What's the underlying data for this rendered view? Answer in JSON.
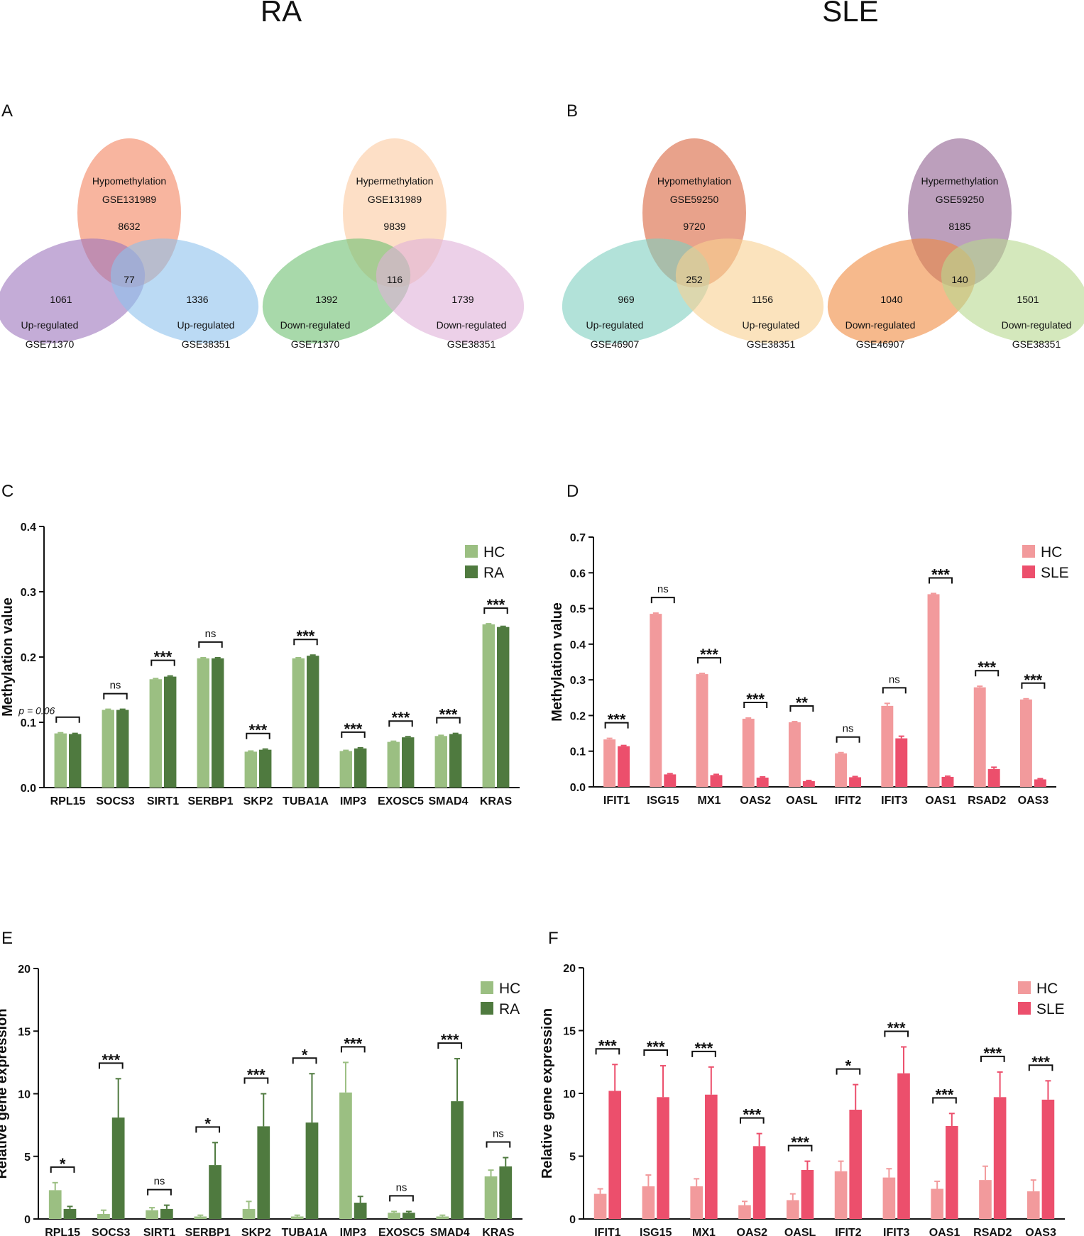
{
  "headers": {
    "left": "RA",
    "right": "SLE"
  },
  "colors": {
    "ra_hc": "#9bbf82",
    "ra": "#4f7a3f",
    "sle_hc": "#f29a9c",
    "sle": "#ec4f6c",
    "text": "#111111"
  },
  "venns": [
    {
      "panel": "A",
      "diagrams": [
        {
          "circles": [
            {
              "labels": [
                "Hypomethylation",
                "GSE131989"
              ],
              "count": "8632",
              "color": "#f3835f"
            },
            {
              "labels": [
                "Up-regulated",
                "GSE71370"
              ],
              "count": "1061",
              "color": "#9c74bc"
            },
            {
              "labels": [
                "Up-regulated",
                "GSE38351"
              ],
              "count": "1336",
              "color": "#8dc2ec"
            }
          ],
          "center": "77"
        },
        {
          "circles": [
            {
              "labels": [
                "Hypermethylation",
                "GSE131989"
              ],
              "count": "9839",
              "color": "#fbc9a0"
            },
            {
              "labels": [
                "Down-regulated",
                "GSE71370"
              ],
              "count": "1392",
              "color": "#6ebf72"
            },
            {
              "labels": [
                "Down-regulated",
                "GSE38351"
              ],
              "count": "1739",
              "color": "#e0b1d9"
            }
          ],
          "center": "116"
        }
      ]
    },
    {
      "panel": "B",
      "diagrams": [
        {
          "circles": [
            {
              "labels": [
                "Hypomethylation",
                "GSE59250"
              ],
              "count": "9720",
              "color": "#d8643e"
            },
            {
              "labels": [
                "Up-regulated",
                "GSE46907"
              ],
              "count": "969",
              "color": "#7fcfc0"
            },
            {
              "labels": [
                "Up-regulated",
                "GSE38351"
              ],
              "count": "1156",
              "color": "#f9d191"
            }
          ],
          "center": "252"
        },
        {
          "circles": [
            {
              "labels": [
                "Hypermethylation",
                "GSE59250"
              ],
              "count": "8185",
              "color": "#8f5f8f"
            },
            {
              "labels": [
                "Down-regulated",
                "GSE46907"
              ],
              "count": "1040",
              "color": "#f08a40"
            },
            {
              "labels": [
                "Down-regulated",
                "GSE38351"
              ],
              "count": "1501",
              "color": "#b7d890"
            }
          ],
          "center": "140"
        }
      ]
    }
  ],
  "chart_data": [
    {
      "panel": "C",
      "type": "bar",
      "ylabel": "Methylation value",
      "ylim": [
        0,
        0.4
      ],
      "yticks": [
        "0.0",
        "0.1",
        "0.2",
        "0.3",
        "0.4"
      ],
      "categories": [
        "RPL15",
        "SOCS3",
        "SIRT1",
        "SERBP1",
        "SKP2",
        "TUBA1A",
        "IMP3",
        "EXOSC5",
        "SMAD4",
        "KRAS"
      ],
      "series": [
        {
          "name": "HC",
          "values": [
            0.083,
            0.119,
            0.166,
            0.198,
            0.055,
            0.198,
            0.056,
            0.07,
            0.079,
            0.25
          ],
          "errors": [
            0.001,
            0.001,
            0.001,
            0.001,
            0.001,
            0.001,
            0.001,
            0.001,
            0.001,
            0.001
          ]
        },
        {
          "name": "RA",
          "values": [
            0.082,
            0.119,
            0.17,
            0.198,
            0.058,
            0.202,
            0.06,
            0.077,
            0.082,
            0.246
          ],
          "errors": [
            0.001,
            0.001,
            0.001,
            0.001,
            0.001,
            0.001,
            0.001,
            0.001,
            0.001,
            0.001
          ]
        }
      ],
      "significance": [
        "p = 0.06",
        "ns",
        "***",
        "ns",
        "***",
        "***",
        "***",
        "***",
        "***",
        "***"
      ],
      "legend": "top-right"
    },
    {
      "panel": "D",
      "type": "bar",
      "ylabel": "Methylation value",
      "ylim": [
        0,
        0.7
      ],
      "yticks": [
        "0.0",
        "0.1",
        "0.2",
        "0.3",
        "0.4",
        "0.5",
        "0.6",
        "0.7"
      ],
      "categories": [
        "IFIT1",
        "ISG15",
        "MX1",
        "OAS2",
        "OASL",
        "IFIT2",
        "IFIT3",
        "OAS1",
        "RSAD2",
        "OAS3"
      ],
      "series": [
        {
          "name": "HC",
          "values": [
            0.133,
            0.485,
            0.316,
            0.191,
            0.181,
            0.094,
            0.227,
            0.54,
            0.279,
            0.245
          ],
          "errors": [
            0.003,
            0.002,
            0.002,
            0.002,
            0.002,
            0.002,
            0.007,
            0.002,
            0.003,
            0.002
          ]
        },
        {
          "name": "SLE",
          "values": [
            0.114,
            0.035,
            0.033,
            0.026,
            0.016,
            0.027,
            0.136,
            0.028,
            0.05,
            0.021
          ],
          "errors": [
            0.002,
            0.002,
            0.002,
            0.002,
            0.002,
            0.002,
            0.006,
            0.002,
            0.005,
            0.002
          ]
        }
      ],
      "significance": [
        "***",
        "ns",
        "***",
        "***",
        "**",
        "ns",
        "ns",
        "***",
        "***",
        "***"
      ],
      "legend": "top-right"
    },
    {
      "panel": "E",
      "type": "bar",
      "ylabel": "Relative gene expression",
      "ylim": [
        0,
        20
      ],
      "yticks": [
        "0",
        "5",
        "10",
        "15",
        "20"
      ],
      "categories": [
        "RPL15",
        "SOCS3",
        "SIRT1",
        "SERBP1",
        "SKP2",
        "TUBA1A",
        "IMP3",
        "EXOSC5",
        "SMAD4",
        "KRAS"
      ],
      "series": [
        {
          "name": "HC",
          "values": [
            2.3,
            0.4,
            0.7,
            0.2,
            0.8,
            0.2,
            10.1,
            0.5,
            0.2,
            3.4
          ],
          "errors": [
            0.6,
            0.3,
            0.2,
            0.1,
            0.6,
            0.1,
            2.4,
            0.1,
            0.1,
            0.5
          ]
        },
        {
          "name": "RA",
          "values": [
            0.8,
            8.1,
            0.8,
            4.3,
            7.4,
            7.7,
            1.3,
            0.5,
            9.4,
            4.2
          ],
          "errors": [
            0.2,
            3.1,
            0.3,
            1.8,
            2.6,
            3.9,
            0.5,
            0.1,
            3.4,
            0.7
          ]
        }
      ],
      "significance": [
        "*",
        "***",
        "ns",
        "*",
        "***",
        "*",
        "***",
        "ns",
        "***",
        "ns"
      ],
      "legend": "top-right"
    },
    {
      "panel": "F",
      "type": "bar",
      "ylabel": "Relative gene expression",
      "ylim": [
        0,
        20
      ],
      "yticks": [
        "0",
        "5",
        "10",
        "15",
        "20"
      ],
      "categories": [
        "IFIT1",
        "ISG15",
        "MX1",
        "OAS2",
        "OASL",
        "IFIT2",
        "IFIT3",
        "OAS1",
        "RSAD2",
        "OAS3"
      ],
      "series": [
        {
          "name": "HC",
          "values": [
            2.0,
            2.6,
            2.6,
            1.1,
            1.5,
            3.8,
            3.3,
            2.4,
            3.1,
            2.2
          ],
          "errors": [
            0.4,
            0.9,
            0.6,
            0.3,
            0.5,
            0.8,
            0.7,
            0.6,
            1.1,
            0.9
          ]
        },
        {
          "name": "SLE",
          "values": [
            10.2,
            9.7,
            9.9,
            5.8,
            3.9,
            8.7,
            11.6,
            7.4,
            9.7,
            9.5
          ],
          "errors": [
            2.1,
            2.5,
            2.2,
            1.0,
            0.7,
            2.0,
            2.1,
            1.0,
            2.0,
            1.5
          ]
        }
      ],
      "significance": [
        "***",
        "***",
        "***",
        "***",
        "***",
        "*",
        "***",
        "***",
        "***",
        "***"
      ],
      "legend": "top-right"
    }
  ]
}
